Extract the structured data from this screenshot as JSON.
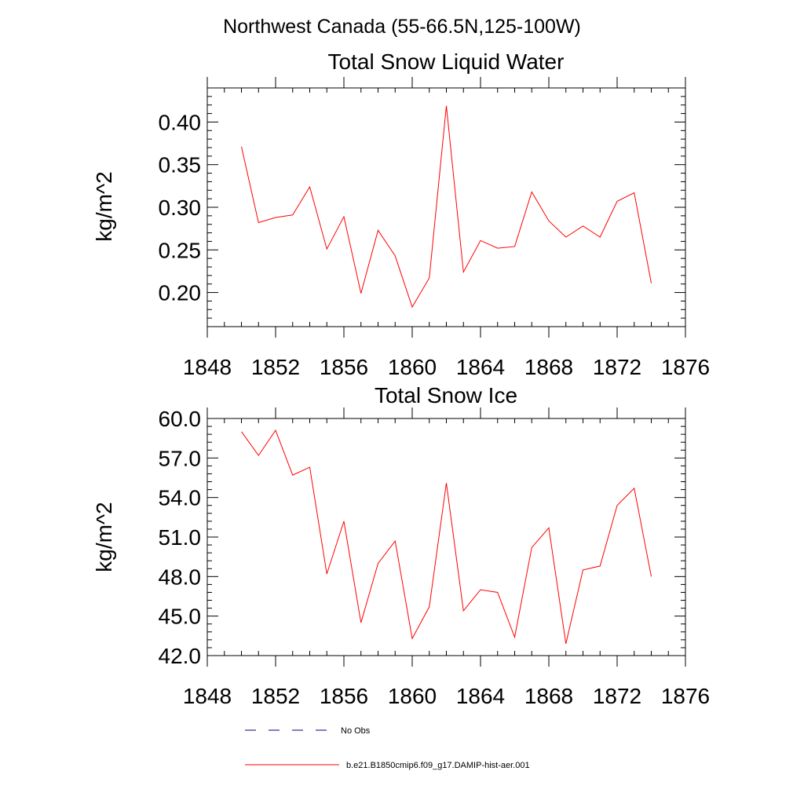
{
  "page_title": "Northwest Canada (55-66.5N,125-100W)",
  "colors": {
    "model": "#ff0000",
    "obs": "#000080",
    "axis": "#000000"
  },
  "chart_data": [
    {
      "type": "line",
      "title": "Total Snow Liquid Water",
      "ylabel": "kg/m^2",
      "xlabel": "",
      "xlim": [
        1848,
        1876
      ],
      "ylim": [
        0.16,
        0.44
      ],
      "x_ticks": [
        1848,
        1852,
        1856,
        1860,
        1864,
        1868,
        1872,
        1876
      ],
      "y_ticks": [
        0.2,
        0.25,
        0.3,
        0.35,
        0.4
      ],
      "y_tick_labels": [
        "0.20",
        "0.25",
        "0.30",
        "0.35",
        "0.40"
      ],
      "series": [
        {
          "name": "b.e21.B1850cmip6.f09_g17.DAMIP-hist-aer.001",
          "color": "#ff0000",
          "x": [
            1850,
            1851,
            1852,
            1853,
            1854,
            1855,
            1856,
            1857,
            1858,
            1859,
            1860,
            1861,
            1862,
            1863,
            1864,
            1865,
            1866,
            1867,
            1868,
            1869,
            1870,
            1871,
            1872,
            1873,
            1874
          ],
          "y": [
            0.371,
            0.282,
            0.288,
            0.291,
            0.324,
            0.251,
            0.289,
            0.199,
            0.273,
            0.243,
            0.183,
            0.217,
            0.419,
            0.224,
            0.261,
            0.252,
            0.254,
            0.318,
            0.284,
            0.265,
            0.278,
            0.265,
            0.307,
            0.317,
            0.211
          ]
        }
      ]
    },
    {
      "type": "line",
      "title": "Total Snow Ice",
      "ylabel": "kg/m^2",
      "xlabel": "",
      "xlim": [
        1848,
        1876
      ],
      "ylim": [
        42.0,
        60.0
      ],
      "x_ticks": [
        1848,
        1852,
        1856,
        1860,
        1864,
        1868,
        1872,
        1876
      ],
      "y_ticks": [
        42,
        45,
        48,
        51,
        54,
        57,
        60
      ],
      "y_tick_labels": [
        "42.0",
        "45.0",
        "48.0",
        "51.0",
        "54.0",
        "57.0",
        "60.0"
      ],
      "series": [
        {
          "name": "b.e21.B1850cmip6.f09_g17.DAMIP-hist-aer.001",
          "color": "#ff0000",
          "x": [
            1850,
            1851,
            1852,
            1853,
            1854,
            1855,
            1856,
            1857,
            1858,
            1859,
            1860,
            1861,
            1862,
            1863,
            1864,
            1865,
            1866,
            1867,
            1868,
            1869,
            1870,
            1871,
            1872,
            1873,
            1874
          ],
          "y": [
            59.0,
            57.2,
            59.1,
            55.7,
            56.3,
            48.2,
            52.2,
            44.5,
            49.0,
            50.7,
            43.3,
            45.7,
            55.1,
            45.4,
            47.0,
            46.8,
            43.4,
            50.2,
            51.7,
            42.9,
            48.5,
            48.8,
            53.4,
            54.7,
            48.0
          ]
        }
      ]
    }
  ],
  "legend": [
    {
      "label": "No Obs",
      "style": "dashed",
      "color": "#000080"
    },
    {
      "label": "b.e21.B1850cmip6.f09_g17.DAMIP-hist-aer.001",
      "style": "solid",
      "color": "#ff0000"
    }
  ]
}
